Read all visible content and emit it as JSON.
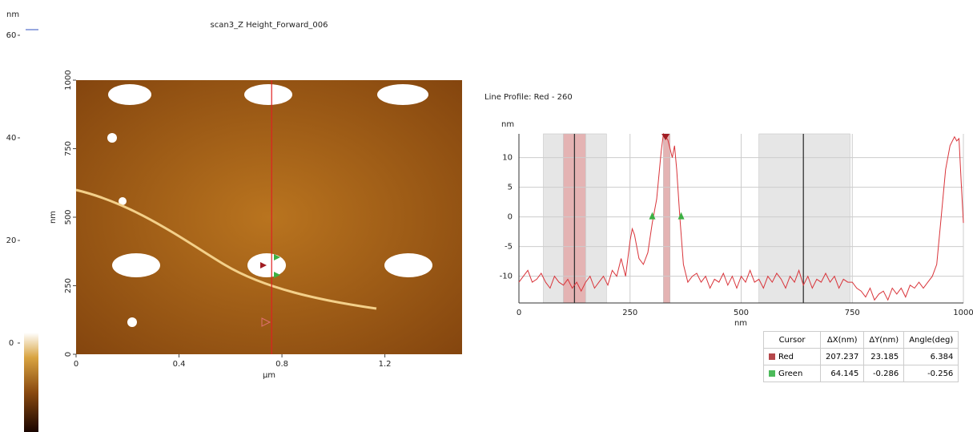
{
  "colorbar": {
    "label": "nm",
    "ticks": [
      60,
      40,
      20,
      0
    ]
  },
  "image": {
    "title": "scan3_Z Height_Forward_006",
    "xlabel": "µm",
    "ylabel": "nm",
    "xlim": [
      0,
      1.5
    ],
    "xticks": [
      0,
      0.4,
      0.8,
      1.2
    ],
    "ylim": [
      0,
      1000
    ],
    "yticks": [
      0,
      250,
      500,
      750,
      1000
    ],
    "cursor_x": 0.76,
    "cursor_color": "#e02020"
  },
  "chart_data": {
    "type": "line",
    "title": "Line Profile: Red  -  260",
    "xlabel": "nm",
    "ylabel": "nm",
    "color": "#d9343a",
    "x": [
      0,
      10,
      20,
      30,
      40,
      50,
      60,
      70,
      80,
      90,
      100,
      110,
      120,
      130,
      140,
      150,
      160,
      170,
      180,
      190,
      200,
      210,
      220,
      230,
      240,
      250,
      255,
      260,
      270,
      280,
      290,
      300,
      310,
      320,
      325,
      335,
      345,
      350,
      355,
      362,
      370,
      380,
      390,
      400,
      410,
      420,
      430,
      440,
      450,
      460,
      470,
      480,
      490,
      500,
      510,
      520,
      530,
      540,
      550,
      560,
      570,
      580,
      590,
      600,
      610,
      620,
      630,
      640,
      650,
      660,
      670,
      680,
      690,
      700,
      710,
      720,
      730,
      740,
      750,
      760,
      770,
      780,
      790,
      800,
      810,
      820,
      830,
      840,
      850,
      860,
      870,
      880,
      890,
      900,
      910,
      920,
      930,
      940,
      950,
      960,
      970,
      980,
      985,
      990,
      995,
      1000
    ],
    "values": [
      -11,
      -10,
      -9,
      -11,
      -10.5,
      -9.5,
      -11,
      -12,
      -10,
      -11,
      -11.5,
      -10.5,
      -12,
      -11,
      -12.5,
      -11,
      -10,
      -12,
      -11,
      -10,
      -11.5,
      -9,
      -10,
      -7,
      -10,
      -4,
      -2,
      -3,
      -7,
      -8,
      -6,
      -1,
      3,
      11,
      14,
      13,
      10,
      12,
      8,
      0,
      -8,
      -11,
      -10,
      -9.5,
      -11,
      -10,
      -12,
      -10.5,
      -11,
      -9.5,
      -11.5,
      -10,
      -12,
      -10,
      -11,
      -9,
      -11,
      -10.5,
      -12,
      -10,
      -11,
      -9.5,
      -10.5,
      -12,
      -10,
      -11,
      -9,
      -11.5,
      -10,
      -12,
      -10.5,
      -11,
      -9.5,
      -11,
      -10,
      -12,
      -10.5,
      -11,
      -11,
      -12,
      -12.5,
      -13.5,
      -12,
      -14,
      -13,
      -12.5,
      -14,
      -12,
      -13,
      -12,
      -13.5,
      -11.5,
      -12,
      -11,
      -12,
      -11,
      -10,
      -8,
      0,
      8,
      12,
      13.5,
      12.8,
      13.2,
      6,
      -1
    ],
    "xlim": [
      0,
      1000
    ],
    "xticks": [
      0,
      250,
      500,
      750,
      1000
    ],
    "ylim": [
      -14.5,
      14
    ],
    "yticks": [
      -10,
      -5,
      0,
      5,
      10
    ],
    "grid": true,
    "regions": [
      {
        "color": "#e6e6e6",
        "x": [
          55,
          197
        ]
      },
      {
        "color": "#e6e6e6",
        "x": [
          540,
          745
        ]
      },
      {
        "color": "#e4b3b3",
        "x": [
          100,
          150
        ]
      },
      {
        "color": "#e4b3b3",
        "x": [
          325,
          340
        ]
      }
    ],
    "cursor_lines": [
      125,
      640
    ],
    "markers": [
      {
        "color": "#a01c22",
        "shape": "down",
        "x": 330,
        "y": 14
      },
      {
        "color": "#3cb043",
        "shape": "up",
        "x": 300,
        "y": 0
      },
      {
        "color": "#3cb043",
        "shape": "up",
        "x": 365,
        "y": 0
      }
    ]
  },
  "table": {
    "header": [
      "Cursor",
      "ΔX(nm)",
      "ΔY(nm)",
      "Angle(deg)"
    ],
    "rows": [
      {
        "color": "#b5474b",
        "cells": [
          "Red",
          207.237,
          23.185,
          6.384
        ]
      },
      {
        "color": "#4cbb5a",
        "cells": [
          "Green",
          64.145,
          -0.286,
          -0.256
        ]
      }
    ]
  }
}
